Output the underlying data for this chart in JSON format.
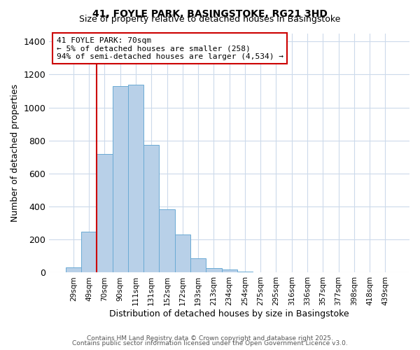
{
  "title": "41, FOYLE PARK, BASINGSTOKE, RG21 3HD",
  "subtitle": "Size of property relative to detached houses in Basingstoke",
  "all_bar_values": [
    30,
    248,
    720,
    1130,
    1140,
    775,
    385,
    230,
    88,
    28,
    18,
    5,
    0,
    0,
    0,
    0,
    0,
    0,
    0,
    0,
    0
  ],
  "categories": [
    "29sqm",
    "49sqm",
    "70sqm",
    "90sqm",
    "111sqm",
    "131sqm",
    "152sqm",
    "172sqm",
    "193sqm",
    "213sqm",
    "234sqm",
    "254sqm",
    "275sqm",
    "295sqm",
    "316sqm",
    "336sqm",
    "357sqm",
    "377sqm",
    "398sqm",
    "418sqm",
    "439sqm"
  ],
  "bar_color": "#b8d0e8",
  "bar_edge_color": "#6aaad4",
  "background_color": "#ffffff",
  "grid_color": "#ccdaeb",
  "ylabel": "Number of detached properties",
  "xlabel": "Distribution of detached houses by size in Basingstoke",
  "ylim": [
    0,
    1450
  ],
  "yticks": [
    0,
    200,
    400,
    600,
    800,
    1000,
    1200,
    1400
  ],
  "vline_color": "#cc0000",
  "annotation_title": "41 FOYLE PARK: 70sqm",
  "annotation_line1": "← 5% of detached houses are smaller (258)",
  "annotation_line2": "94% of semi-detached houses are larger (4,534) →",
  "annotation_box_color": "#ffffff",
  "annotation_box_edge": "#cc0000",
  "footer1": "Contains HM Land Registry data © Crown copyright and database right 2025.",
  "footer2": "Contains public sector information licensed under the Open Government Licence v3.0.",
  "num_bins": 21,
  "vline_bin_index": 2
}
